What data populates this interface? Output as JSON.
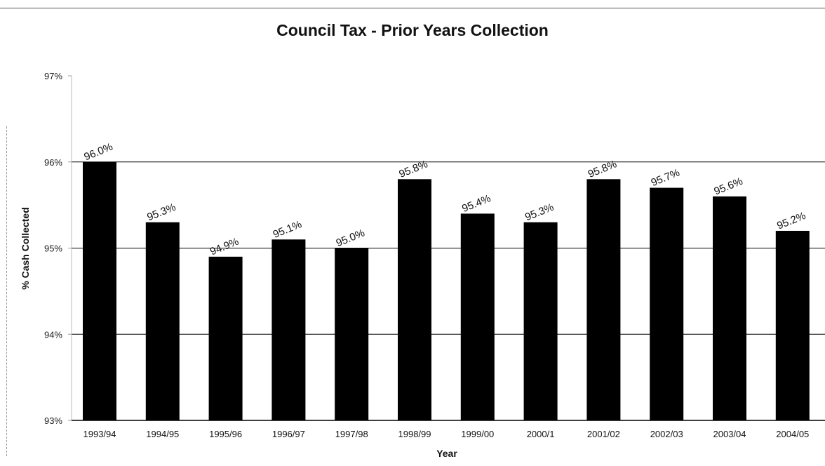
{
  "chart_data": {
    "type": "bar",
    "title": "Council Tax - Prior Years Collection",
    "xlabel": "Year",
    "ylabel": "% Cash Collected",
    "categories": [
      "1993/94",
      "1994/95",
      "1995/96",
      "1996/97",
      "1997/98",
      "1998/99",
      "1999/00",
      "2000/1",
      "2001/02",
      "2002/03",
      "2003/04",
      "2004/05"
    ],
    "values": [
      96.0,
      95.3,
      94.9,
      95.1,
      95.0,
      95.8,
      95.4,
      95.3,
      95.8,
      95.7,
      95.6,
      95.2
    ],
    "data_labels": [
      "96.0%",
      "95.3%",
      "94.9%",
      "95.1%",
      "95.0%",
      "95.8%",
      "95.4%",
      "95.3%",
      "95.8%",
      "95.7%",
      "95.6%",
      "95.2%"
    ],
    "ylim": [
      93,
      97
    ],
    "yticks": [
      93,
      94,
      95,
      96,
      97
    ],
    "ytick_labels": [
      "93%",
      "94%",
      "95%",
      "96%",
      "97%"
    ],
    "gridlines": [
      94,
      95,
      96
    ],
    "bar_color": "#000000",
    "legend": "none"
  }
}
